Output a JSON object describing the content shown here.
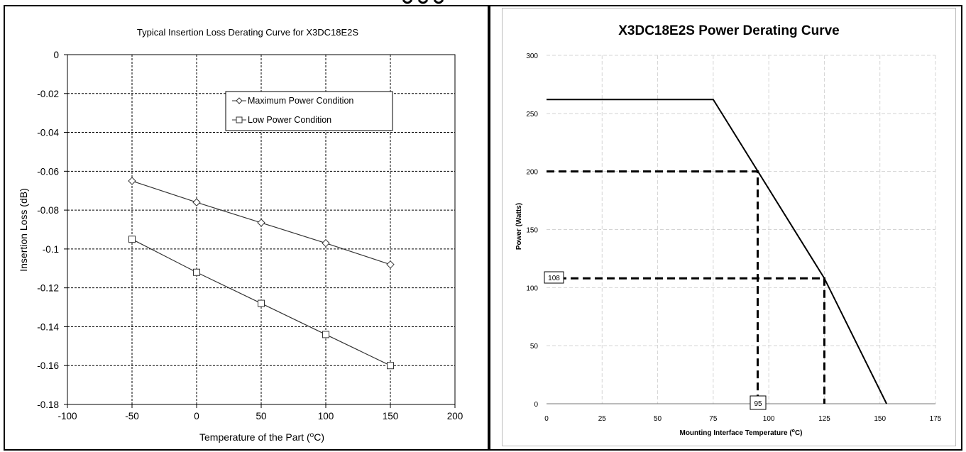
{
  "charts": {
    "left": {
      "title": "Typical Insertion Loss Derating Curve for X3DC18E2S",
      "xlabel_main": "Temperature of the Part (",
      "xlabel_sup": "o",
      "xlabel_end": "C)",
      "ylabel": "Insertion Loss (dB)"
    },
    "right": {
      "title": "X3DC18E2S Power Derating Curve",
      "xlabel_main": "Mounting Interface Temperature (",
      "xlabel_sup": "o",
      "xlabel_end": "C)",
      "ylabel": "Power (Watts)",
      "annotations": [
        "108",
        "95"
      ]
    }
  },
  "chart_data": [
    {
      "type": "line",
      "title": "Typical Insertion Loss Derating Curve for X3DC18E2S",
      "xlabel": "Temperature of the Part (oC)",
      "ylabel": "Insertion Loss (dB)",
      "xlim": [
        -100,
        200
      ],
      "ylim": [
        -0.18,
        0
      ],
      "xticks": [
        -100,
        -50,
        0,
        50,
        100,
        150,
        200
      ],
      "yticks": [
        0,
        -0.02,
        -0.04,
        -0.06,
        -0.08,
        -0.1,
        -0.12,
        -0.14,
        -0.16,
        -0.18
      ],
      "ytick_labels": [
        "0",
        "-0.02",
        "-0.04",
        "-0.06",
        "-0.08",
        "-0.1",
        "-0.12",
        "-0.14",
        "-0.16",
        "-0.18"
      ],
      "grid": true,
      "legend_position": "top-right",
      "x": [
        -50,
        0,
        50,
        100,
        150
      ],
      "series": [
        {
          "name": "Maximum Power Condition",
          "marker": "diamond",
          "values": [
            -0.065,
            -0.076,
            -0.0865,
            -0.097,
            -0.108
          ]
        },
        {
          "name": "Low Power Condition",
          "marker": "square",
          "values": [
            -0.095,
            -0.112,
            -0.128,
            -0.144,
            -0.16
          ]
        }
      ]
    },
    {
      "type": "line",
      "title": "X3DC18E2S Power Derating Curve",
      "xlabel": "Mounting Interface Temperature (oC)",
      "ylabel": "Power (Watts)",
      "xlim": [
        0,
        175
      ],
      "ylim": [
        0,
        300
      ],
      "xticks": [
        0,
        25,
        50,
        75,
        100,
        125,
        150,
        175
      ],
      "yticks": [
        0,
        50,
        100,
        150,
        200,
        250,
        300
      ],
      "grid": true,
      "series": [
        {
          "name": "",
          "x": [
            0,
            75,
            125,
            153
          ],
          "values": [
            262,
            262,
            108,
            0
          ]
        }
      ],
      "reference_lines": [
        {
          "x": [
            0,
            95,
            95
          ],
          "y": [
            200,
            200,
            0
          ]
        },
        {
          "x": [
            0,
            125,
            125
          ],
          "y": [
            108,
            108,
            0
          ]
        }
      ],
      "annotations": [
        {
          "text": "108",
          "axis": "y",
          "value": 108
        },
        {
          "text": "95",
          "axis": "x",
          "value": 95
        }
      ]
    }
  ]
}
